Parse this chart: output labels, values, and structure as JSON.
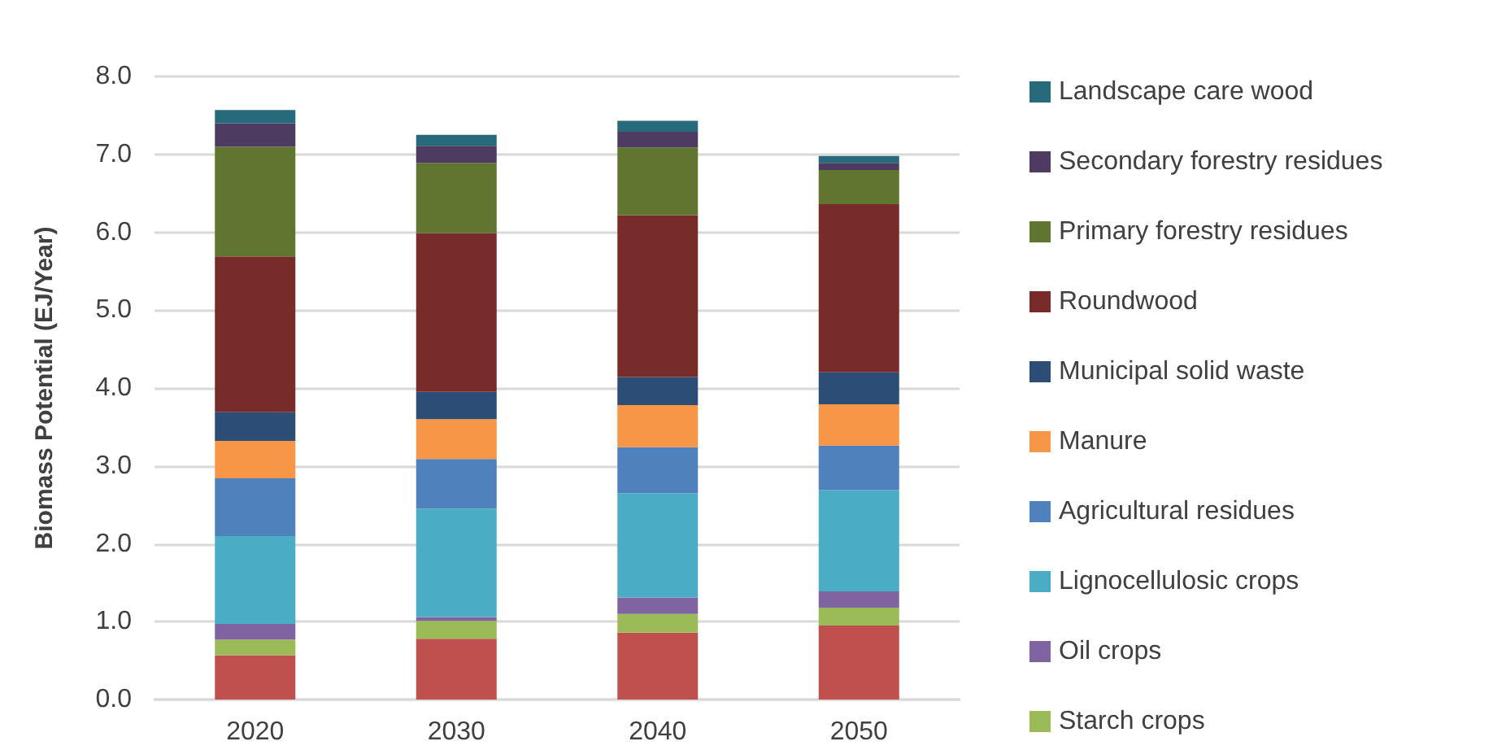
{
  "chart_data": {
    "type": "bar",
    "ylabel": "Biomass Potential (EJ/Year)",
    "categories": [
      "2020",
      "2030",
      "2040",
      "2050"
    ],
    "stacked": true,
    "series": [
      {
        "color": "#c0504d",
        "values": [
          0.57,
          0.78,
          0.86,
          0.95
        ]
      },
      {
        "name": "Starch crops",
        "color": "#9bbb59",
        "values": [
          0.2,
          0.23,
          0.24,
          0.23
        ]
      },
      {
        "name": "Oil crops",
        "color": "#8064a2",
        "values": [
          0.2,
          0.05,
          0.21,
          0.21
        ]
      },
      {
        "name": "Lignocellulosic crops",
        "color": "#4bacc6",
        "values": [
          1.13,
          1.39,
          1.34,
          1.3
        ]
      },
      {
        "name": "Agricultural residues",
        "color": "#4f81bd",
        "values": [
          0.74,
          0.64,
          0.59,
          0.57
        ]
      },
      {
        "name": "Manure",
        "color": "#f79646",
        "values": [
          0.48,
          0.51,
          0.54,
          0.53
        ]
      },
      {
        "name": "Municipal solid waste",
        "color": "#2c4d75",
        "values": [
          0.37,
          0.35,
          0.36,
          0.41
        ]
      },
      {
        "name": "Roundwood",
        "color": "#772c2a",
        "values": [
          2.0,
          2.04,
          2.08,
          2.16
        ]
      },
      {
        "name": "Primary forestry residues",
        "color": "#5f7530",
        "values": [
          1.41,
          0.9,
          0.87,
          0.44
        ]
      },
      {
        "name": "Secondary forestry residues",
        "color": "#4d3b62",
        "values": [
          0.3,
          0.22,
          0.2,
          0.09
        ]
      },
      {
        "name": "Landscape care wood",
        "color": "#276a7c",
        "values": [
          0.17,
          0.14,
          0.14,
          0.09
        ]
      }
    ],
    "ylim": [
      0,
      8
    ],
    "yticks": [
      {
        "value": 0,
        "label": "0.0"
      },
      {
        "value": 1,
        "label": "1.0"
      },
      {
        "value": 2,
        "label": "2.0"
      },
      {
        "value": 3,
        "label": "3.0"
      },
      {
        "value": 4,
        "label": "4.0"
      },
      {
        "value": 5,
        "label": "5.0"
      },
      {
        "value": 6,
        "label": "6.0"
      },
      {
        "value": 7,
        "label": "7.0"
      },
      {
        "value": 8,
        "label": "8.0"
      }
    ],
    "grid": "y",
    "legend": "right"
  }
}
